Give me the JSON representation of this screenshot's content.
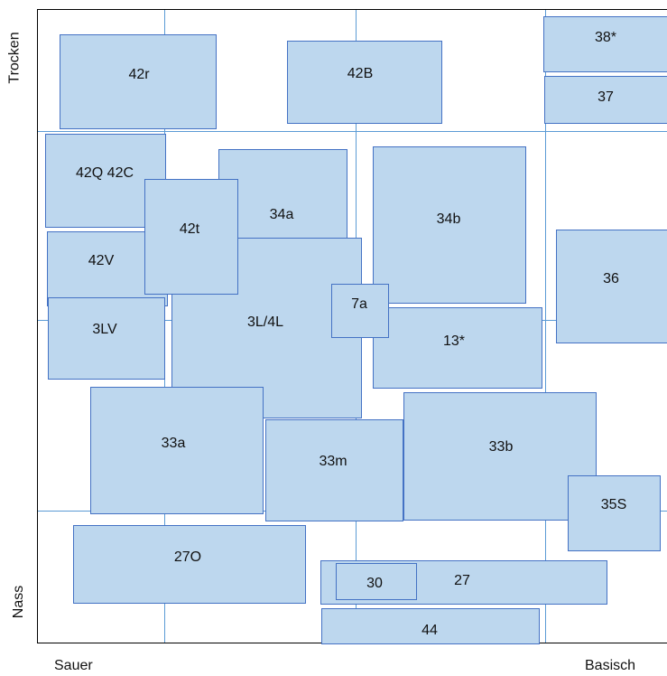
{
  "axes": {
    "y_top": "Trocken",
    "y_bottom": "Nass",
    "x_left": "Sauer",
    "x_right": "Basisch"
  },
  "units": {
    "u_42r": "42r",
    "u_42B": "42B",
    "u_38": "38*",
    "u_37": "37",
    "u_42Q42C": "42Q 42C",
    "u_34a": "34a",
    "u_34b": "34b",
    "u_42t": "42t",
    "u_42V": "42V",
    "u_36": "36",
    "u_7a": "7a",
    "u_3LV": "3LV",
    "u_3L4L": "3L/4L",
    "u_13": "13*",
    "u_33a": "33a",
    "u_33m": "33m",
    "u_33b": "33b",
    "u_35S": "35S",
    "u_27O": "27O",
    "u_27": "27",
    "u_30": "30",
    "u_44": "44"
  }
}
